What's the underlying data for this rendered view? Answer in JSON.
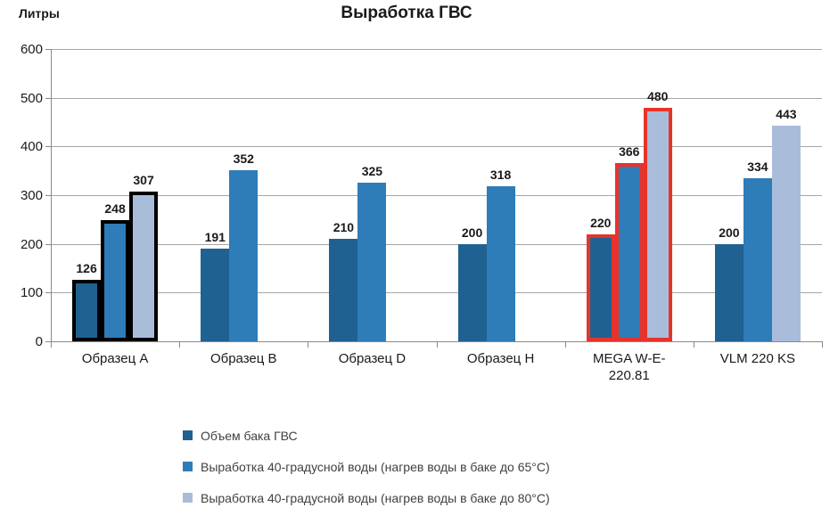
{
  "chart_data": {
    "type": "bar",
    "title": "Выработка ГВС",
    "ylabel": "Литры",
    "xlabel": "",
    "ylim": [
      0,
      600
    ],
    "ytick_step": 100,
    "grid": true,
    "legend_position": "bottom-left",
    "categories": [
      "Образец A",
      "Образец B",
      "Образец D",
      "Образец H",
      "MEGA W-E-220.81",
      "VLM 220 KS"
    ],
    "series": [
      {
        "name": "Объем бака ГВС",
        "color": "#1f6191",
        "values": [
          126,
          191,
          210,
          200,
          220,
          200
        ]
      },
      {
        "name": "Выработка 40-градусной воды (нагрев воды в баке до 65°С)",
        "color": "#2e7cb8",
        "values": [
          248,
          352,
          325,
          318,
          366,
          334
        ]
      },
      {
        "name": "Выработка 40-градусной воды (нагрев воды в баке до 80°С)",
        "color": "#a9bddb",
        "values": [
          307,
          null,
          null,
          null,
          480,
          443
        ]
      }
    ],
    "highlights": [
      {
        "category": "Образец A",
        "outline_color": "#000000"
      },
      {
        "category": "MEGA W-E-220.81",
        "outline_color": "#e8332a"
      }
    ],
    "colors": {
      "gridline": "#a6a6a6",
      "axis": "#898989",
      "text": "#1a1a1a"
    }
  }
}
